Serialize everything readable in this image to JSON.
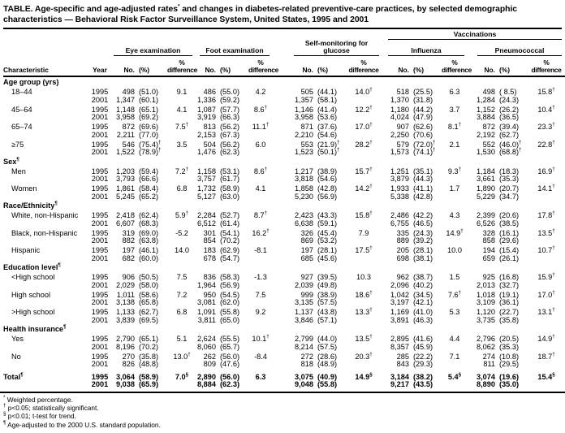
{
  "colors": {
    "text": "#000000",
    "background": "#ffffff",
    "rule": "#000000"
  },
  "title_lines": [
    "TABLE. Age-specific and age-adjusted rates* and changes in diabetes-related preventive-care practices, by selected demographic",
    "characteristics — Behavioral Risk Factor Surveillance System, United States, 1995 and 2001"
  ],
  "header": {
    "vaccinations": "Vaccinations",
    "characteristic": "Characteristic",
    "year": "Year",
    "groups": {
      "eye": "Eye examination",
      "foot": "Foot examination",
      "glucose": "Self-monitoring for glucose",
      "influenza": "Influenza",
      "pneumococcal": "Pneumococcal"
    },
    "sub": {
      "no": "No.",
      "pct": "(%)",
      "diff_top": "%",
      "diff_bottom": "difference"
    }
  },
  "sections": [
    {
      "label": "Age group (yrs)",
      "rows": [
        {
          "label": "18–44",
          "lines": [
            {
              "year": "1995",
              "cells": [
                "498",
                "(51.0)",
                "9.1",
                "486",
                "(55.0)",
                "4.2",
                "505",
                "(44.1)",
                "14.0†",
                "518",
                "(25.5)",
                "6.3",
                "498",
                "( 8.5)",
                "15.8†"
              ]
            },
            {
              "year": "2001",
              "cells": [
                "1,347",
                "(60.1)",
                "",
                "1,336",
                "(59.2)",
                "",
                "1,357",
                "(58.1)",
                "",
                "1,370",
                "(31.8)",
                "",
                "1,284",
                "(24.3)",
                ""
              ]
            }
          ]
        },
        {
          "label": "45–64",
          "lines": [
            {
              "year": "1995",
              "cells": [
                "1,148",
                "(65.1)",
                "4.1",
                "1,087",
                "(57.7)",
                "8.6†",
                "1,146",
                "(41.4)",
                "12.2†",
                "1,180",
                "(44.2)",
                "3.7",
                "1,152",
                "(26.2)",
                "10.4†"
              ]
            },
            {
              "year": "2001",
              "cells": [
                "3,958",
                "(69.2)",
                "",
                "3,919",
                "(66.3)",
                "",
                "3,958",
                "(53.6)",
                "",
                "4,024",
                "(47.9)",
                "",
                "3,884",
                "(36.5)",
                ""
              ]
            }
          ]
        },
        {
          "label": "65–74",
          "lines": [
            {
              "year": "1995",
              "cells": [
                "872",
                "(69.6)",
                "7.5†",
                "813",
                "(56.2)",
                "11.1†",
                "871",
                "(37.6)",
                "17.0†",
                "907",
                "(62.6)",
                "8.1†",
                "872",
                "(39.4)",
                "23.3†"
              ]
            },
            {
              "year": "2001",
              "cells": [
                "2,211",
                "(77.0)",
                "",
                "2,153",
                "(67.3)",
                "",
                "2,210",
                "(54.6)",
                "",
                "2,250",
                "(70.6)",
                "",
                "2,192",
                "(62.7)",
                ""
              ]
            }
          ]
        },
        {
          "label": "≥75",
          "lines": [
            {
              "year": "1995",
              "cells": [
                "546",
                "(75.4)†",
                "3.5",
                "504",
                "(56.2)",
                "6.0",
                "553",
                "(21.9)†",
                "28.2†",
                "579",
                "(72.0)†",
                "2.1",
                "552",
                "(46.0)†",
                "22.8†"
              ]
            },
            {
              "year": "2001",
              "cells": [
                "1,522",
                "(78.9)†",
                "",
                "1,476",
                "(62.3)",
                "",
                "1,523",
                "(50.1)†",
                "",
                "1,573",
                "(74.1)†",
                "",
                "1,530",
                "(68.8)†",
                ""
              ]
            }
          ]
        }
      ]
    },
    {
      "label": "Sex¶",
      "rows": [
        {
          "label": "Men",
          "lines": [
            {
              "year": "1995",
              "cells": [
                "1,203",
                "(59.4)",
                "7.2†",
                "1,158",
                "(53.1)",
                "8.6†",
                "1,217",
                "(38.9)",
                "15.7†",
                "1,251",
                "(35.1)",
                "9.3†",
                "1,184",
                "(18.3)",
                "16.9†"
              ]
            },
            {
              "year": "2001",
              "cells": [
                "3,793",
                "(66.6)",
                "",
                "3,757",
                "(61.7)",
                "",
                "3,818",
                "(54.6)",
                "",
                "3,879",
                "(44.3)",
                "",
                "3,661",
                "(35.3)",
                ""
              ]
            }
          ]
        },
        {
          "label": "Women",
          "lines": [
            {
              "year": "1995",
              "cells": [
                "1,861",
                "(58.4)",
                "6.8",
                "1,732",
                "(58.9)",
                "4.1",
                "1,858",
                "(42.8)",
                "14.2†",
                "1,933",
                "(41.1)",
                "1.7",
                "1,890",
                "(20.7)",
                "14.1†"
              ]
            },
            {
              "year": "2001",
              "cells": [
                "5,245",
                "(65.2)",
                "",
                "5,127",
                "(63.0)",
                "",
                "5,230",
                "(56.9)",
                "",
                "5,338",
                "(42.8)",
                "",
                "5,229",
                "(34.7)",
                ""
              ]
            }
          ]
        }
      ]
    },
    {
      "label": "Race/Ethnicity¶",
      "rows": [
        {
          "label": "White, non-Hispanic",
          "lines": [
            {
              "year": "1995",
              "cells": [
                "2,418",
                "(62.4)",
                "5.9†",
                "2,284",
                "(52.7)",
                "8.7†",
                "2,423",
                "(43.3)",
                "15.8†",
                "2,486",
                "(42.2)",
                "4.3",
                "2,399",
                "(20.6)",
                "17.8†"
              ]
            },
            {
              "year": "2001",
              "cells": [
                "6,607",
                "(68.3)",
                "",
                "6,512",
                "(61.4)",
                "",
                "6,638",
                "(59.1)",
                "",
                "6,755",
                "(46.5)",
                "",
                "6,526",
                "(38.5)",
                ""
              ]
            }
          ]
        },
        {
          "label": "Black, non-Hispanic",
          "lines": [
            {
              "year": "1995",
              "cells": [
                "319",
                "(69.0)",
                "-5.2",
                "301",
                "(54.1)",
                "16.2†",
                "326",
                "(45.4)",
                "7.9",
                "335",
                "(24.3)",
                "14.9†",
                "328",
                "(16.1)",
                "13.5†"
              ]
            },
            {
              "year": "2001",
              "cells": [
                "882",
                "(63.8)",
                "",
                "854",
                "(70.2)",
                "",
                "869",
                "(53.2)",
                "",
                "889",
                "(39.2)",
                "",
                "858",
                "(29.6)",
                ""
              ]
            }
          ]
        },
        {
          "label": "Hispanic",
          "lines": [
            {
              "year": "1995",
              "cells": [
                "197",
                "(46.1)",
                "14.0",
                "183",
                "(62.9)",
                "-8.1",
                "197",
                "(28.1)",
                "17.5†",
                "205",
                "(28.1)",
                "10.0",
                "194",
                "(15.4)",
                "10.7†"
              ]
            },
            {
              "year": "2001",
              "cells": [
                "682",
                "(60.0)",
                "",
                "678",
                "(54.7)",
                "",
                "685",
                "(45.6)",
                "",
                "698",
                "(38.1)",
                "",
                "659",
                "(26.1)",
                ""
              ]
            }
          ]
        }
      ]
    },
    {
      "label": "Education level¶",
      "rows": [
        {
          "label": "<High school",
          "lines": [
            {
              "year": "1995",
              "cells": [
                "906",
                "(50.5)",
                "7.5",
                "836",
                "(58.3)",
                "-1.3",
                "927",
                "(39.5)",
                "10.3",
                "962",
                "(38.7)",
                "1.5",
                "925",
                "(16.8)",
                "15.9†"
              ]
            },
            {
              "year": "2001",
              "cells": [
                "2,029",
                "(58.0)",
                "",
                "1,964",
                "(56.9)",
                "",
                "2,039",
                "(49.8)",
                "",
                "2,096",
                "(40.2)",
                "",
                "2,013",
                "(32.7)",
                ""
              ]
            }
          ]
        },
        {
          "label": "High school",
          "lines": [
            {
              "year": "1995",
              "cells": [
                "1,011",
                "(58.6)",
                "7.2",
                "950",
                "(54.5)",
                "7.5",
                "999",
                "(38.9)",
                "18.6†",
                "1,042",
                "(34.5)",
                "7.6†",
                "1,018",
                "(19.1)",
                "17.0†"
              ]
            },
            {
              "year": "2001",
              "cells": [
                "3,138",
                "(65.8)",
                "",
                "3,081",
                "(62.0)",
                "",
                "3,135",
                "(57.5)",
                "",
                "3,197",
                "(42.1)",
                "",
                "3,109",
                "(36.1)",
                ""
              ]
            }
          ]
        },
        {
          "label": ">High school",
          "lines": [
            {
              "year": "1995",
              "cells": [
                "1,133",
                "(62.7)",
                "6.8",
                "1,091",
                "(55.8)",
                "9.2",
                "1,137",
                "(43.8)",
                "13.3†",
                "1,169",
                "(41.0)",
                "5.3",
                "1,120",
                "(22.7)",
                "13.1†"
              ]
            },
            {
              "year": "2001",
              "cells": [
                "3,839",
                "(69.5)",
                "",
                "3,811",
                "(65.0)",
                "",
                "3,846",
                "(57.1)",
                "",
                "3,891",
                "(46.3)",
                "",
                "3,735",
                "(35.8)",
                ""
              ]
            }
          ]
        }
      ]
    },
    {
      "label": "Health insurance¶",
      "rows": [
        {
          "label": "Yes",
          "lines": [
            {
              "year": "1995",
              "cells": [
                "2,790",
                "(65.1)",
                "5.1",
                "2,624",
                "(55.5)",
                "10.1†",
                "2,799",
                "(44.0)",
                "13.5†",
                "2,895",
                "(41.6)",
                "4.4",
                "2,796",
                "(20.5)",
                "14.9†"
              ]
            },
            {
              "year": "2001",
              "cells": [
                "8,196",
                "(70.2)",
                "",
                "8,060",
                "(65.7)",
                "",
                "8,214",
                "(57.5)",
                "",
                "8,357",
                "(45.9)",
                "",
                "8,062",
                "(35.3)",
                ""
              ]
            }
          ]
        },
        {
          "label": "No",
          "lines": [
            {
              "year": "1995",
              "cells": [
                "270",
                "(35.8)",
                "13.0†",
                "262",
                "(56.0)",
                "-8.4",
                "272",
                "(28.6)",
                "20.3†",
                "285",
                "(22.2)",
                "7.1",
                "274",
                "(10.8)",
                "18.7†"
              ]
            },
            {
              "year": "2001",
              "cells": [
                "826",
                "(48.8)",
                "",
                "809",
                "(47.6)",
                "",
                "818",
                "(48.9)",
                "",
                "843",
                "(29.3)",
                "",
                "811",
                "(29.5)",
                ""
              ]
            }
          ]
        }
      ]
    },
    {
      "label": "",
      "rows": [
        {
          "label": "Total¶",
          "indent": false,
          "bold": true,
          "total": true,
          "lines": [
            {
              "year": "1995",
              "cells": [
                "3,064",
                "(58.9)",
                "7.0§",
                "2,890",
                "(56.0)",
                "6.3",
                "3,075",
                "(40.9)",
                "14.9§",
                "3,184",
                "(38.2)",
                "5.4§",
                "3,074",
                "(19.6)",
                "15.4§"
              ]
            },
            {
              "year": "2001",
              "cells": [
                "9,038",
                "(65.9)",
                "",
                "8,884",
                "(62.3)",
                "",
                "9,048",
                "(55.8)",
                "",
                "9,217",
                "(43.5)",
                "",
                "8,890",
                "(35.0)",
                ""
              ]
            }
          ]
        }
      ]
    }
  ],
  "footnotes": [
    "* Weighted percentage.",
    "† p<0.05; statistically significant.",
    "§ p<0.01; t-test for trend.",
    "¶ Age-adjusted to the 2000 U.S. standard population."
  ]
}
